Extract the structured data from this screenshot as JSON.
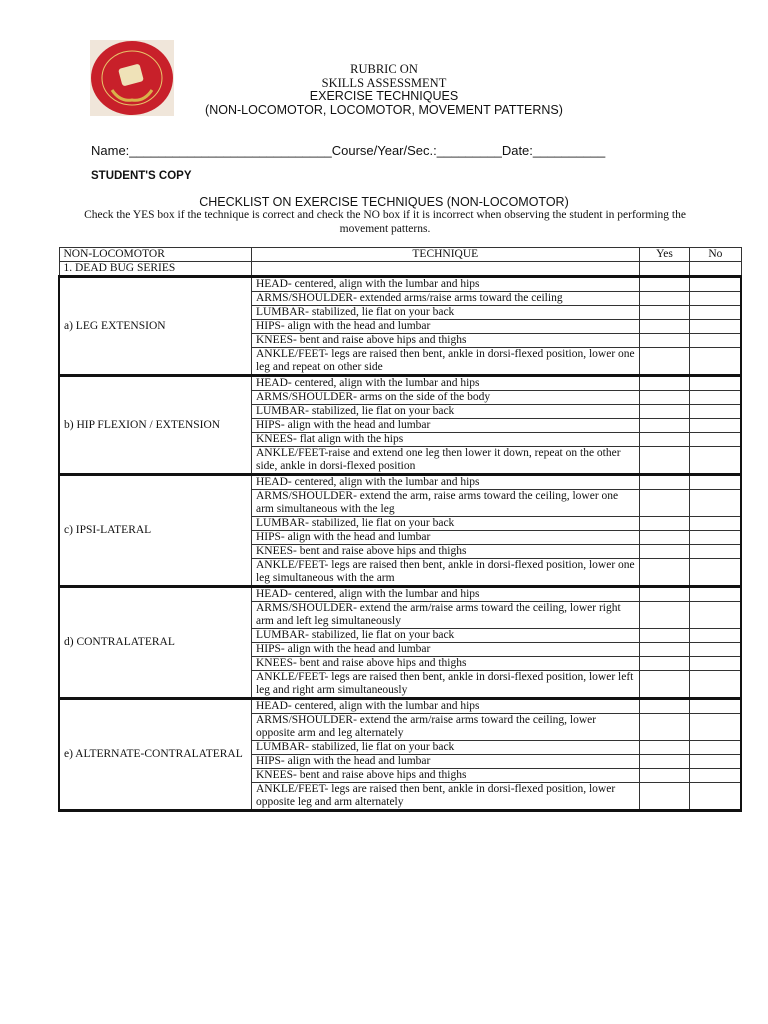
{
  "header": {
    "logo_text": "DON HONORIO VENTURA STATE UNIVERSITY 1861",
    "title_lines": [
      "RUBRIC ON",
      "SKILLS ASSESSMENT",
      "EXERCISE TECHNIQUES",
      "(NON-LOCOMOTOR, LOCOMOTOR, MOVEMENT PATTERNS)"
    ],
    "info_line": "Name:____________________________Course/Year/Sec.:_________Date:__________",
    "copy_label": "STUDENT'S COPY",
    "checklist_title": "CHECKLIST ON EXERCISE TECHNIQUES (NON-LOCOMOTOR)",
    "instructions": "Check the YES box if the technique is correct and check the NO box if it is incorrect when observing the student in performing the movement patterns."
  },
  "table": {
    "headers": [
      "NON-LOCOMOTOR",
      "TECHNIQUE",
      "Yes",
      "No"
    ],
    "series": "1. DEAD BUG SERIES",
    "groups": [
      {
        "name": "a) LEG EXTENSION",
        "items": [
          "HEAD- centered, align with the lumbar and hips",
          "ARMS/SHOULDER- extended arms/raise arms toward the ceiling",
          "LUMBAR- stabilized, lie flat on your back",
          "HIPS- align with the head and lumbar",
          "KNEES- bent and raise above hips and thighs",
          "ANKLE/FEET- legs are raised then bent, ankle in dorsi-flexed position, lower one leg and repeat on other side"
        ]
      },
      {
        "name": "b) HIP FLEXION / EXTENSION",
        "items": [
          "HEAD- centered, align with the lumbar and hips",
          "ARMS/SHOULDER- arms on the side of the body",
          "LUMBAR- stabilized, lie flat on your back",
          "HIPS- align with the head and lumbar",
          "KNEES- flat align with the hips",
          "ANKLE/FEET-raise and extend one leg then lower it down, repeat on the other side, ankle in dorsi-flexed position"
        ]
      },
      {
        "name": "c) IPSI-LATERAL",
        "items": [
          "HEAD- centered, align with the lumbar and hips",
          "ARMS/SHOULDER- extend the arm, raise arms toward the ceiling, lower one arm simultaneous with the leg",
          "LUMBAR- stabilized, lie flat on your back",
          "HIPS- align with the head and lumbar",
          "KNEES- bent and raise above hips and thighs",
          "ANKLE/FEET- legs are raised then bent, ankle in dorsi-flexed position, lower one leg simultaneous with the arm"
        ]
      },
      {
        "name": "d) CONTRALATERAL",
        "items": [
          "HEAD- centered, align with the lumbar and hips",
          "ARMS/SHOULDER- extend the arm/raise arms toward the ceiling, lower right arm and left leg simultaneously",
          "LUMBAR- stabilized, lie flat on your back",
          "HIPS- align with the head and lumbar",
          "KNEES- bent and raise above hips and thighs",
          "ANKLE/FEET- legs are raised then bent, ankle in dorsi-flexed position, lower left leg and right arm simultaneously"
        ]
      },
      {
        "name": "e) ALTERNATE-CONTRALATERAL",
        "items": [
          "HEAD- centered, align with the lumbar and hips",
          "ARMS/SHOULDER- extend the arm/raise arms toward the ceiling, lower opposite arm and leg alternately",
          "LUMBAR- stabilized, lie flat on your back",
          "HIPS- align with the head and lumbar",
          "KNEES- bent and raise above hips and thighs",
          "ANKLE/FEET- legs are raised then bent, ankle in dorsi-flexed position, lower opposite leg and arm alternately"
        ]
      }
    ]
  },
  "colors": {
    "logo_red": "#c8202a",
    "logo_gold": "#d8b24a"
  }
}
